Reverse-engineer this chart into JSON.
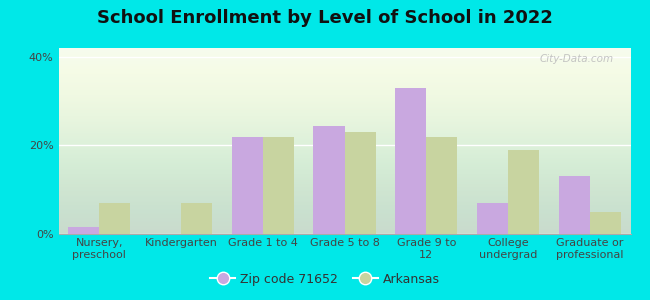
{
  "title": "School Enrollment by Level of School in 2022",
  "categories": [
    "Nursery,\npreschool",
    "Kindergarten",
    "Grade 1 to 4",
    "Grade 5 to 8",
    "Grade 9 to\n12",
    "College\nundergrad",
    "Graduate or\nprofessional"
  ],
  "zip_values": [
    1.5,
    0.0,
    22.0,
    24.5,
    33.0,
    7.0,
    13.0
  ],
  "ar_values": [
    7.0,
    7.0,
    22.0,
    23.0,
    22.0,
    19.0,
    5.0
  ],
  "zip_color": "#c9a8e0",
  "ar_color": "#c8d4a0",
  "background_outer": "#00e8e8",
  "background_inner": "#f0f8ec",
  "ylim": [
    0,
    42
  ],
  "yticks": [
    0,
    20,
    40
  ],
  "ytick_labels": [
    "0%",
    "20%",
    "40%"
  ],
  "zip_label": "Zip code 71652",
  "ar_label": "Arkansas",
  "bar_width": 0.38,
  "title_fontsize": 13,
  "axis_fontsize": 8,
  "legend_fontsize": 9,
  "watermark": "City-Data.com"
}
